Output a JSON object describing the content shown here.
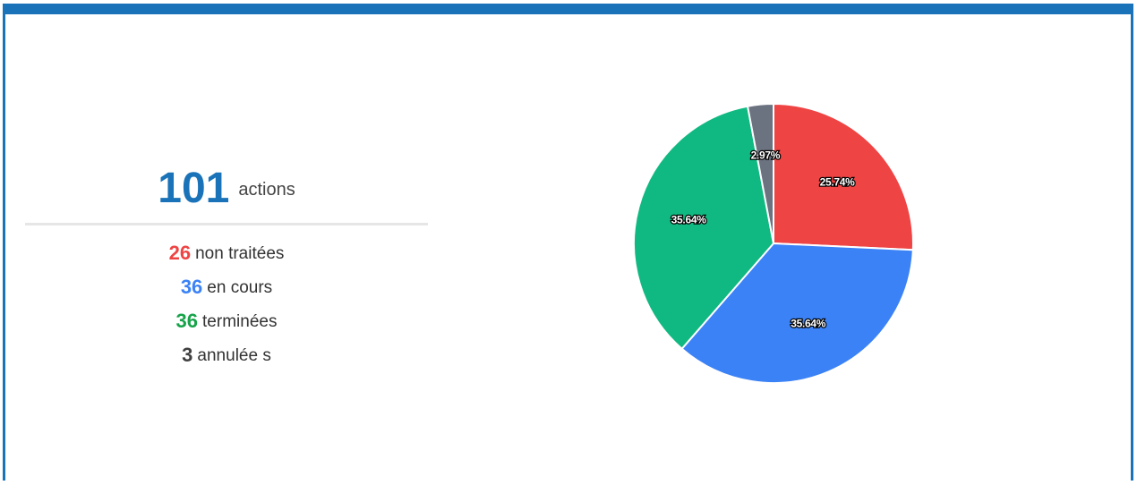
{
  "summary": {
    "total": 101,
    "total_label": "actions",
    "items": [
      {
        "value": 26,
        "label": "non traitées",
        "color": "#ef4444"
      },
      {
        "value": 36,
        "label": "en cours",
        "color": "#3b82f6"
      },
      {
        "value": 36,
        "label": "terminées",
        "color": "#16a34a"
      },
      {
        "value": 3,
        "label": "annulée s",
        "color": "#3f3f3f"
      }
    ]
  },
  "chart_data": {
    "type": "pie",
    "values": [
      25.74,
      35.64,
      35.64,
      2.97
    ],
    "value_labels": [
      "25.74%",
      "35.64%",
      "35.64%",
      "2.97%"
    ],
    "colors": [
      "#ef4444",
      "#3b82f6",
      "#10b981",
      "#6b7280"
    ]
  }
}
